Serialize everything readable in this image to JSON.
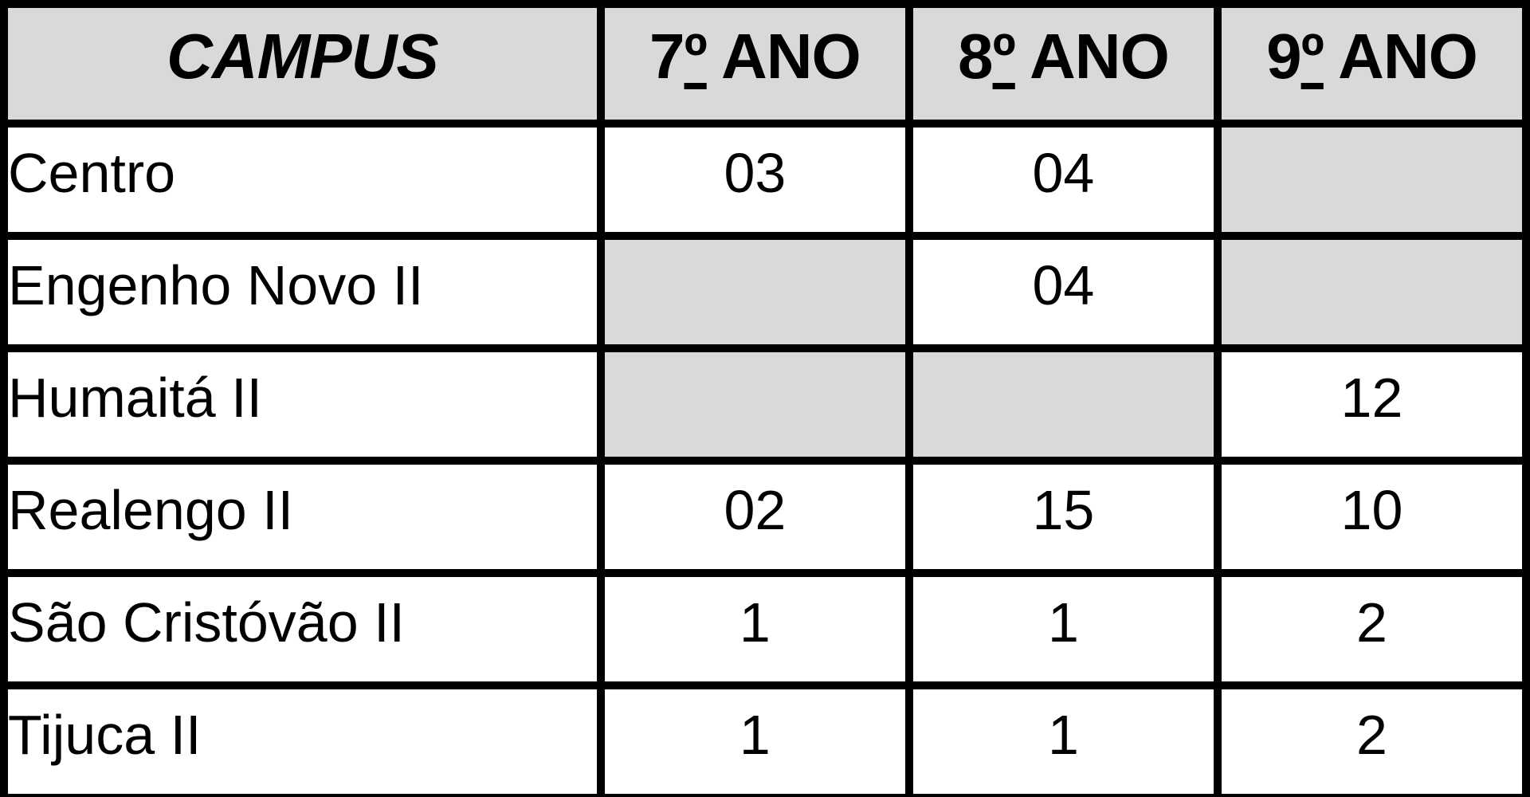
{
  "table": {
    "headers": [
      {
        "label": "CAMPUS"
      },
      {
        "label": "7º ANO"
      },
      {
        "label": "8º ANO"
      },
      {
        "label": "9º ANO"
      }
    ],
    "rows": [
      {
        "campus": "Centro",
        "cells": [
          {
            "value": "03",
            "empty": false
          },
          {
            "value": "04",
            "empty": false
          },
          {
            "value": "",
            "empty": true
          }
        ]
      },
      {
        "campus": "Engenho Novo II",
        "cells": [
          {
            "value": "",
            "empty": true
          },
          {
            "value": "04",
            "empty": false
          },
          {
            "value": "",
            "empty": true
          }
        ]
      },
      {
        "campus": "Humaitá II",
        "cells": [
          {
            "value": "",
            "empty": true
          },
          {
            "value": "",
            "empty": true
          },
          {
            "value": "12",
            "empty": false
          }
        ]
      },
      {
        "campus": "Realengo II",
        "cells": [
          {
            "value": "02",
            "empty": false
          },
          {
            "value": "15",
            "empty": false
          },
          {
            "value": "10",
            "empty": false
          }
        ]
      },
      {
        "campus": "São Cristóvão II",
        "cells": [
          {
            "value": "1",
            "empty": false
          },
          {
            "value": "1",
            "empty": false
          },
          {
            "value": "2",
            "empty": false
          }
        ]
      },
      {
        "campus": "Tijuca II",
        "cells": [
          {
            "value": "1",
            "empty": false
          },
          {
            "value": "1",
            "empty": false
          },
          {
            "value": "2",
            "empty": false
          }
        ]
      }
    ],
    "colors": {
      "header_bg": "#d9d9d9",
      "empty_cell_bg": "#d9d9d9",
      "cell_bg": "#ffffff",
      "border": "#000000",
      "text": "#000000"
    }
  }
}
